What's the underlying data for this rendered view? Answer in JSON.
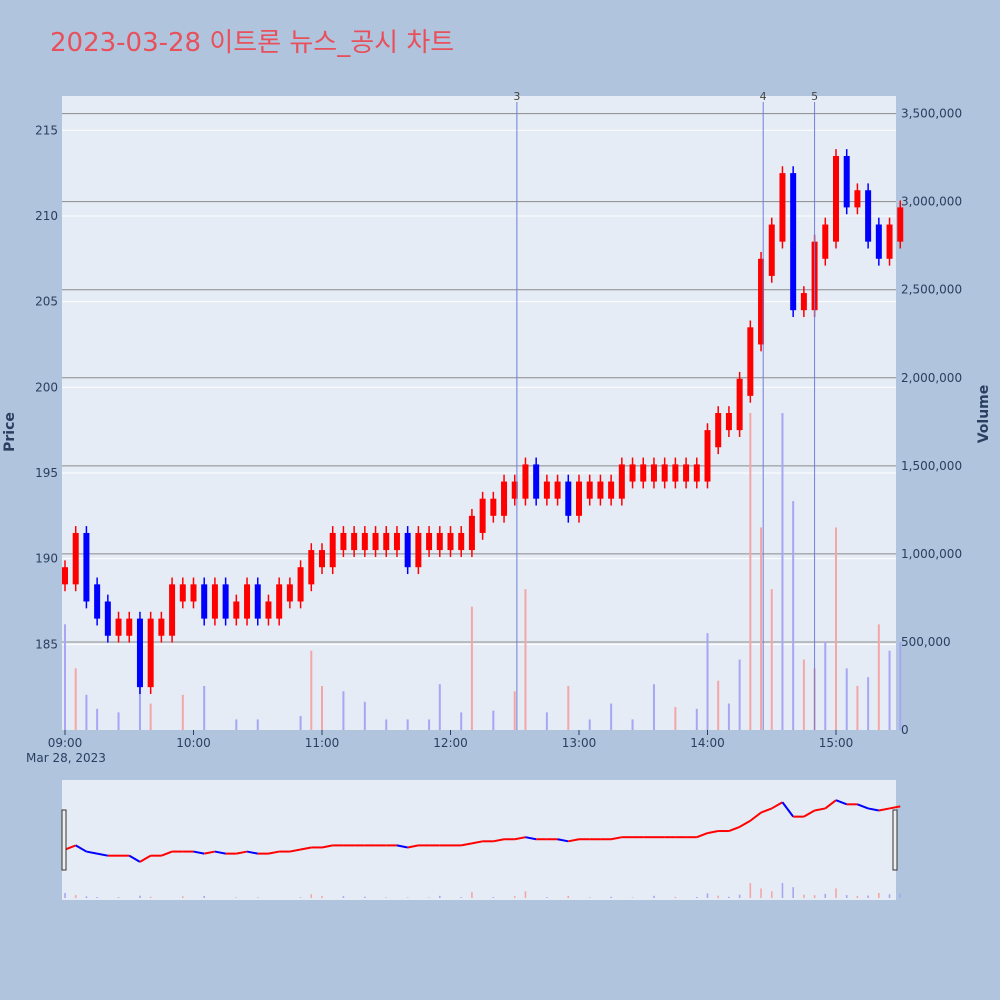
{
  "title": "2023-03-28 이트론 뉴스_공시 차트",
  "colors": {
    "background": "#b0c4de",
    "plot_bg": "#e5ecf6",
    "title": "#e8505b",
    "up": "#ff0000",
    "down": "#0000ff",
    "vol_up": "#f4a6a6",
    "vol_down": "#a6a6f4"
  },
  "chart_data": {
    "type": "candlestick",
    "yaxis_left": {
      "title": "Price",
      "range": [
        180,
        217
      ],
      "ticks": [
        "185",
        "190",
        "195",
        "200",
        "205",
        "210",
        "215"
      ]
    },
    "yaxis_right": {
      "title": "Volume",
      "range": [
        0,
        3600000
      ],
      "ticks": [
        "0",
        "500,000",
        "1,000,000",
        "1,500,000",
        "2,000,000",
        "2,500,000",
        "3,000,000",
        "3,500,000"
      ]
    },
    "xaxis": {
      "ticks": [
        "09:00",
        "10:00",
        "11:00",
        "12:00",
        "13:00",
        "14:00",
        "15:00"
      ],
      "sublabel": "Mar 28, 2023"
    },
    "events": [
      "3",
      "4",
      "5"
    ],
    "price_series": [
      [
        "09:00",
        189
      ],
      [
        "09:05",
        191
      ],
      [
        "09:10",
        188
      ],
      [
        "09:15",
        187
      ],
      [
        "09:20",
        186
      ],
      [
        "09:25",
        186
      ],
      [
        "09:30",
        186
      ],
      [
        "09:35",
        183
      ],
      [
        "09:40",
        186
      ],
      [
        "09:45",
        186
      ],
      [
        "09:50",
        188
      ],
      [
        "09:55",
        188
      ],
      [
        "10:00",
        188
      ],
      [
        "10:05",
        187
      ],
      [
        "10:10",
        188
      ],
      [
        "10:15",
        187
      ],
      [
        "10:20",
        187
      ],
      [
        "10:25",
        188
      ],
      [
        "10:30",
        187
      ],
      [
        "10:35",
        187
      ],
      [
        "10:40",
        188
      ],
      [
        "10:45",
        188
      ],
      [
        "10:50",
        189
      ],
      [
        "10:55",
        190
      ],
      [
        "11:00",
        190
      ],
      [
        "11:05",
        191
      ],
      [
        "11:10",
        191
      ],
      [
        "11:15",
        191
      ],
      [
        "11:20",
        191
      ],
      [
        "11:25",
        191
      ],
      [
        "11:30",
        191
      ],
      [
        "11:35",
        191
      ],
      [
        "11:40",
        190
      ],
      [
        "11:45",
        191
      ],
      [
        "11:50",
        191
      ],
      [
        "11:55",
        191
      ],
      [
        "12:00",
        191
      ],
      [
        "12:05",
        191
      ],
      [
        "12:10",
        192
      ],
      [
        "12:15",
        193
      ],
      [
        "12:20",
        193
      ],
      [
        "12:25",
        194
      ],
      [
        "12:30",
        194
      ],
      [
        "12:35",
        195
      ],
      [
        "12:40",
        194
      ],
      [
        "12:45",
        194
      ],
      [
        "12:50",
        194
      ],
      [
        "12:55",
        193
      ],
      [
        "13:00",
        194
      ],
      [
        "13:05",
        194
      ],
      [
        "13:10",
        194
      ],
      [
        "13:15",
        194
      ],
      [
        "13:20",
        195
      ],
      [
        "13:25",
        195
      ],
      [
        "13:30",
        195
      ],
      [
        "13:35",
        195
      ],
      [
        "13:40",
        195
      ],
      [
        "13:45",
        195
      ],
      [
        "13:50",
        195
      ],
      [
        "13:55",
        195
      ],
      [
        "14:00",
        197
      ],
      [
        "14:05",
        198
      ],
      [
        "14:10",
        198
      ],
      [
        "14:15",
        200
      ],
      [
        "14:20",
        203
      ],
      [
        "14:25",
        207
      ],
      [
        "14:30",
        209
      ],
      [
        "14:35",
        212
      ],
      [
        "14:40",
        205
      ],
      [
        "14:45",
        205
      ],
      [
        "14:50",
        208
      ],
      [
        "14:55",
        209
      ],
      [
        "15:00",
        213
      ],
      [
        "15:05",
        211
      ],
      [
        "15:10",
        211
      ],
      [
        "15:15",
        209
      ],
      [
        "15:20",
        208
      ],
      [
        "15:25",
        209
      ],
      [
        "15:30",
        210
      ]
    ],
    "volume_bars": [
      [
        "09:00",
        600000,
        "down"
      ],
      [
        "09:05",
        350000,
        "up"
      ],
      [
        "09:10",
        200000,
        "down"
      ],
      [
        "09:15",
        120000,
        "down"
      ],
      [
        "09:25",
        100000,
        "down"
      ],
      [
        "09:35",
        280000,
        "down"
      ],
      [
        "09:40",
        150000,
        "up"
      ],
      [
        "09:55",
        200000,
        "up"
      ],
      [
        "10:05",
        250000,
        "down"
      ],
      [
        "10:20",
        60000,
        "down"
      ],
      [
        "10:30",
        60000,
        "down"
      ],
      [
        "10:50",
        80000,
        "down"
      ],
      [
        "10:55",
        450000,
        "up"
      ],
      [
        "11:00",
        250000,
        "up"
      ],
      [
        "11:10",
        220000,
        "down"
      ],
      [
        "11:20",
        160000,
        "down"
      ],
      [
        "11:30",
        60000,
        "down"
      ],
      [
        "11:40",
        60000,
        "down"
      ],
      [
        "11:50",
        60000,
        "down"
      ],
      [
        "11:55",
        260000,
        "down"
      ],
      [
        "12:05",
        100000,
        "down"
      ],
      [
        "12:10",
        700000,
        "up"
      ],
      [
        "12:20",
        110000,
        "down"
      ],
      [
        "12:30",
        220000,
        "up"
      ],
      [
        "12:35",
        800000,
        "up"
      ],
      [
        "12:45",
        100000,
        "down"
      ],
      [
        "12:55",
        250000,
        "up"
      ],
      [
        "13:05",
        60000,
        "down"
      ],
      [
        "13:15",
        150000,
        "down"
      ],
      [
        "13:25",
        60000,
        "down"
      ],
      [
        "13:35",
        260000,
        "down"
      ],
      [
        "13:45",
        130000,
        "up"
      ],
      [
        "13:55",
        120000,
        "down"
      ],
      [
        "14:00",
        550000,
        "down"
      ],
      [
        "14:05",
        280000,
        "up"
      ],
      [
        "14:10",
        150000,
        "down"
      ],
      [
        "14:15",
        400000,
        "down"
      ],
      [
        "14:20",
        1800000,
        "up"
      ],
      [
        "14:25",
        1150000,
        "up"
      ],
      [
        "14:30",
        800000,
        "up"
      ],
      [
        "14:35",
        1800000,
        "down"
      ],
      [
        "14:40",
        1300000,
        "down"
      ],
      [
        "14:45",
        400000,
        "up"
      ],
      [
        "14:50",
        350000,
        "up"
      ],
      [
        "14:55",
        500000,
        "down"
      ],
      [
        "15:00",
        1150000,
        "up"
      ],
      [
        "15:05",
        350000,
        "down"
      ],
      [
        "15:10",
        250000,
        "up"
      ],
      [
        "15:15",
        300000,
        "down"
      ],
      [
        "15:20",
        600000,
        "up"
      ],
      [
        "15:25",
        450000,
        "down"
      ],
      [
        "15:30",
        500000,
        "down"
      ]
    ]
  }
}
